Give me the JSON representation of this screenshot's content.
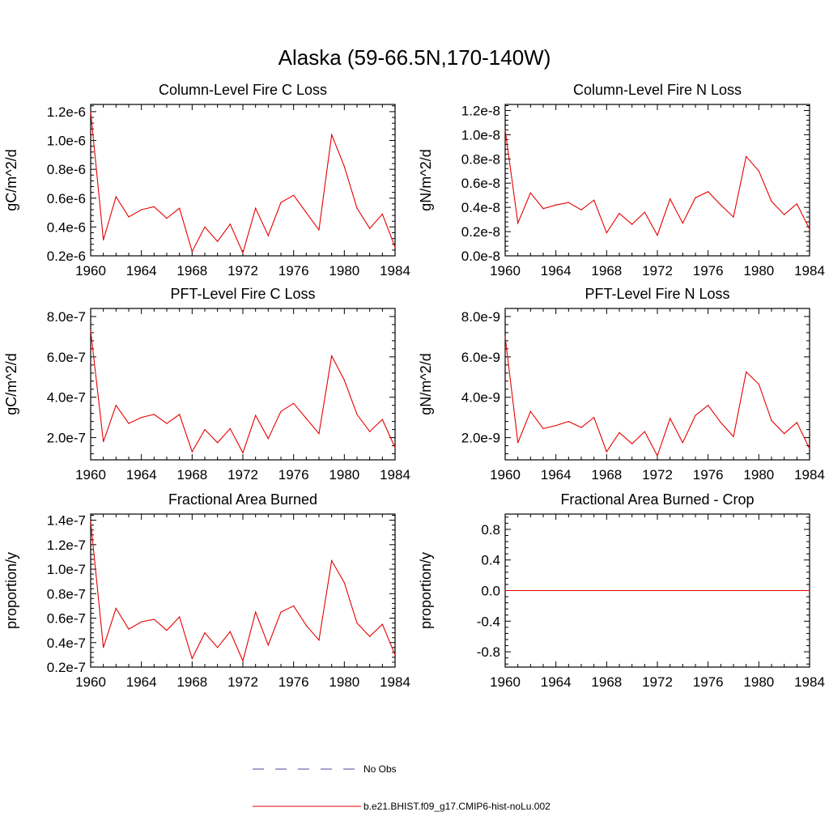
{
  "figure_title": "Alaska (59-66.5N,170-140W)",
  "legend": {
    "obs_label": "No Obs",
    "obs_color": "#4a4a9a",
    "model_label": "b.e21.BHIST.f09_g17.CMIP6-hist-noLu.002",
    "model_color": "#e60000"
  },
  "chart_data": [
    {
      "type": "line",
      "title": "Column-Level Fire C Loss",
      "ylabel": "gC/m^2/d",
      "xlim": [
        1960,
        1984
      ],
      "ylim": [
        2e-07,
        1.25e-06
      ],
      "xticks": [
        1960,
        1964,
        1968,
        1972,
        1976,
        1980,
        1984
      ],
      "xtick_labels": [
        "1960",
        "1964",
        "1968",
        "1972",
        "1976",
        "1980",
        "1984"
      ],
      "yticks": [
        2e-07,
        4e-07,
        6e-07,
        8e-07,
        1e-06,
        1.2e-06
      ],
      "ytick_labels": [
        "0.2e-6",
        "0.4e-6",
        "0.6e-6",
        "0.8e-6",
        "1.0e-6",
        "1.2e-6"
      ],
      "grid": false,
      "x": [
        1960,
        1961,
        1962,
        1963,
        1964,
        1965,
        1966,
        1967,
        1968,
        1969,
        1970,
        1971,
        1972,
        1973,
        1974,
        1975,
        1976,
        1977,
        1978,
        1979,
        1980,
        1981,
        1982,
        1983,
        1984
      ],
      "series": [
        {
          "color": "#e60000",
          "values": [
            1.2e-06,
            3.1e-07,
            6.1e-07,
            4.7e-07,
            5.2e-07,
            5.4e-07,
            4.6e-07,
            5.3e-07,
            2.3e-07,
            4e-07,
            3e-07,
            4.2e-07,
            2.2e-07,
            5.3e-07,
            3.4e-07,
            5.7e-07,
            6.2e-07,
            5e-07,
            3.8e-07,
            1.04e-06,
            8.2e-07,
            5.3e-07,
            3.9e-07,
            4.9e-07,
            2.6e-07
          ]
        }
      ]
    },
    {
      "type": "line",
      "title": "Column-Level Fire N Loss",
      "ylabel": "gN/m^2/d",
      "xlim": [
        1960,
        1984
      ],
      "ylim": [
        0.0,
        1.25e-08
      ],
      "xticks": [
        1960,
        1964,
        1968,
        1972,
        1976,
        1980,
        1984
      ],
      "xtick_labels": [
        "1960",
        "1964",
        "1968",
        "1972",
        "1976",
        "1980",
        "1984"
      ],
      "yticks": [
        0.0,
        2e-09,
        4e-09,
        6e-09,
        8e-09,
        1e-08,
        1.2e-08
      ],
      "ytick_labels": [
        "0.0e-8",
        "0.2e-8",
        "0.4e-8",
        "0.6e-8",
        "0.8e-8",
        "1.0e-8",
        "1.2e-8"
      ],
      "grid": false,
      "x": [
        1960,
        1961,
        1962,
        1963,
        1964,
        1965,
        1966,
        1967,
        1968,
        1969,
        1970,
        1971,
        1972,
        1973,
        1974,
        1975,
        1976,
        1977,
        1978,
        1979,
        1980,
        1981,
        1982,
        1983,
        1984
      ],
      "series": [
        {
          "color": "#e60000",
          "values": [
            1.04e-08,
            2.7e-09,
            5.2e-09,
            3.9e-09,
            4.2e-09,
            4.4e-09,
            3.8e-09,
            4.6e-09,
            1.9e-09,
            3.5e-09,
            2.6e-09,
            3.6e-09,
            1.7e-09,
            4.7e-09,
            2.7e-09,
            4.8e-09,
            5.3e-09,
            4.2e-09,
            3.2e-09,
            8.2e-09,
            7e-09,
            4.5e-09,
            3.4e-09,
            4.3e-09,
            2.2e-09
          ]
        }
      ]
    },
    {
      "type": "line",
      "title": "PFT-Level Fire C Loss",
      "ylabel": "gC/m^2/d",
      "xlim": [
        1960,
        1984
      ],
      "ylim": [
        9e-08,
        8.4e-07
      ],
      "xticks": [
        1960,
        1964,
        1968,
        1972,
        1976,
        1980,
        1984
      ],
      "xtick_labels": [
        "1960",
        "1964",
        "1968",
        "1972",
        "1976",
        "1980",
        "1984"
      ],
      "yticks": [
        2e-07,
        4e-07,
        6e-07,
        8e-07
      ],
      "ytick_labels": [
        "2.0e-7",
        "4.0e-7",
        "6.0e-7",
        "8.0e-7"
      ],
      "grid": false,
      "x": [
        1960,
        1961,
        1962,
        1963,
        1964,
        1965,
        1966,
        1967,
        1968,
        1969,
        1970,
        1971,
        1972,
        1973,
        1974,
        1975,
        1976,
        1977,
        1978,
        1979,
        1980,
        1981,
        1982,
        1983,
        1984
      ],
      "series": [
        {
          "color": "#e60000",
          "values": [
            7.3e-07,
            1.8e-07,
            3.6e-07,
            2.7e-07,
            3e-07,
            3.15e-07,
            2.7e-07,
            3.15e-07,
            1.3e-07,
            2.4e-07,
            1.75e-07,
            2.45e-07,
            1.25e-07,
            3.1e-07,
            1.95e-07,
            3.3e-07,
            3.7e-07,
            2.95e-07,
            2.2e-07,
            6.05e-07,
            4.85e-07,
            3.15e-07,
            2.3e-07,
            2.9e-07,
            1.5e-07
          ]
        }
      ]
    },
    {
      "type": "line",
      "title": "PFT-Level Fire N Loss",
      "ylabel": "gN/m^2/d",
      "xlim": [
        1960,
        1984
      ],
      "ylim": [
        9e-10,
        8.4e-09
      ],
      "xticks": [
        1960,
        1964,
        1968,
        1972,
        1976,
        1980,
        1984
      ],
      "xtick_labels": [
        "1960",
        "1964",
        "1968",
        "1972",
        "1976",
        "1980",
        "1984"
      ],
      "yticks": [
        2e-09,
        4e-09,
        6e-09,
        8e-09
      ],
      "ytick_labels": [
        "2.0e-9",
        "4.0e-9",
        "6.0e-9",
        "8.0e-9"
      ],
      "grid": false,
      "x": [
        1960,
        1961,
        1962,
        1963,
        1964,
        1965,
        1966,
        1967,
        1968,
        1969,
        1970,
        1971,
        1972,
        1973,
        1974,
        1975,
        1976,
        1977,
        1978,
        1979,
        1980,
        1981,
        1982,
        1983,
        1984
      ],
      "series": [
        {
          "color": "#e60000",
          "values": [
            7e-09,
            1.75e-09,
            3.3e-09,
            2.45e-09,
            2.6e-09,
            2.8e-09,
            2.5e-09,
            3e-09,
            1.3e-09,
            2.25e-09,
            1.7e-09,
            2.3e-09,
            1.1e-09,
            2.95e-09,
            1.75e-09,
            3.1e-09,
            3.6e-09,
            2.75e-09,
            2.05e-09,
            5.25e-09,
            4.65e-09,
            2.85e-09,
            2.2e-09,
            2.75e-09,
            1.45e-09
          ]
        }
      ]
    },
    {
      "type": "line",
      "title": "Fractional Area Burned",
      "ylabel": "proportion/y",
      "xlim": [
        1960,
        1984
      ],
      "ylim": [
        2e-08,
        1.45e-07
      ],
      "xticks": [
        1960,
        1964,
        1968,
        1972,
        1976,
        1980,
        1984
      ],
      "xtick_labels": [
        "1960",
        "1964",
        "1968",
        "1972",
        "1976",
        "1980",
        "1984"
      ],
      "yticks": [
        2e-08,
        4e-08,
        6e-08,
        8e-08,
        1e-07,
        1.2e-07,
        1.4e-07
      ],
      "ytick_labels": [
        "0.2e-7",
        "0.4e-7",
        "0.6e-7",
        "0.8e-7",
        "1.0e-7",
        "1.2e-7",
        "1.4e-7"
      ],
      "grid": false,
      "x": [
        1960,
        1961,
        1962,
        1963,
        1964,
        1965,
        1966,
        1967,
        1968,
        1969,
        1970,
        1971,
        1972,
        1973,
        1974,
        1975,
        1976,
        1977,
        1978,
        1979,
        1980,
        1981,
        1982,
        1983,
        1984
      ],
      "series": [
        {
          "color": "#e60000",
          "values": [
            1.39e-07,
            3.6e-08,
            6.8e-08,
            5.1e-08,
            5.7e-08,
            5.9e-08,
            5e-08,
            6.1e-08,
            2.7e-08,
            4.8e-08,
            3.6e-08,
            4.9e-08,
            2.5e-08,
            6.5e-08,
            3.8e-08,
            6.5e-08,
            7e-08,
            5.4e-08,
            4.2e-08,
            1.07e-07,
            8.9e-08,
            5.6e-08,
            4.5e-08,
            5.5e-08,
            3e-08
          ]
        }
      ]
    },
    {
      "type": "line",
      "title": "Fractional Area Burned - Crop",
      "ylabel": "proportion/y",
      "xlim": [
        1960,
        1984
      ],
      "ylim": [
        -1.0,
        1.0
      ],
      "xticks": [
        1960,
        1964,
        1968,
        1972,
        1976,
        1980,
        1984
      ],
      "xtick_labels": [
        "1960",
        "1964",
        "1968",
        "1972",
        "1976",
        "1980",
        "1984"
      ],
      "yticks": [
        -0.8,
        -0.4,
        0.0,
        0.4,
        0.8
      ],
      "ytick_labels": [
        "-0.8",
        "-0.4",
        "0.0",
        "0.4",
        "0.8"
      ],
      "grid": false,
      "x": [
        1960,
        1961,
        1962,
        1963,
        1964,
        1965,
        1966,
        1967,
        1968,
        1969,
        1970,
        1971,
        1972,
        1973,
        1974,
        1975,
        1976,
        1977,
        1978,
        1979,
        1980,
        1981,
        1982,
        1983,
        1984
      ],
      "series": [
        {
          "color": "#e60000",
          "values": [
            0,
            0,
            0,
            0,
            0,
            0,
            0,
            0,
            0,
            0,
            0,
            0,
            0,
            0,
            0,
            0,
            0,
            0,
            0,
            0,
            0,
            0,
            0,
            0,
            0
          ]
        }
      ]
    }
  ]
}
